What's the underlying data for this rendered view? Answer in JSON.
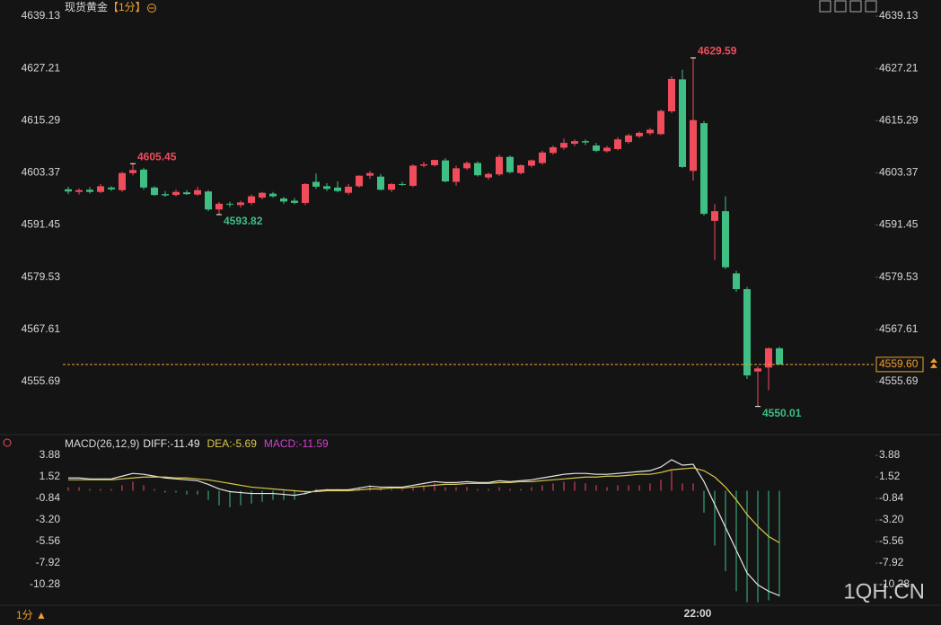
{
  "header": {
    "instrument": "现货黄金",
    "period": "【1分】"
  },
  "footer": {
    "period": "1分",
    "watermark": "1QH.CN"
  },
  "chart_data": [
    {
      "type": "candlestick",
      "categories": [
        null,
        null,
        null,
        null,
        null,
        null,
        null,
        null,
        null,
        null,
        null,
        null,
        null,
        null,
        null,
        null,
        null,
        null,
        null,
        null,
        null,
        null,
        null,
        null,
        null,
        null,
        null,
        null,
        null,
        null,
        null,
        null,
        null,
        null,
        null,
        null,
        null,
        null,
        null,
        null,
        null,
        null,
        null,
        null,
        null,
        null,
        null,
        null,
        null,
        null,
        null,
        null,
        null,
        null,
        null,
        null,
        null,
        null,
        "22:00",
        null,
        null,
        null,
        null,
        null,
        null,
        null,
        null
      ],
      "open": [
        4599.6,
        4599.0,
        4599.5,
        4599.0,
        4600.0,
        4599.4,
        4603.3,
        4604.1,
        4600.0,
        4598.5,
        4598.3,
        4598.9,
        4598.4,
        4599.1,
        4595.0,
        4596.3,
        4596.0,
        4596.5,
        4597.7,
        4598.6,
        4597.5,
        4597.0,
        4596.5,
        4601.3,
        4600.3,
        4600.0,
        4598.8,
        4600.3,
        4602.7,
        4602.5,
        4599.5,
        4600.8,
        4600.4,
        4605.0,
        4605.1,
        4606.2,
        4601.3,
        4604.4,
        4605.6,
        4602.3,
        4603.0,
        4607.0,
        4603.3,
        4605.0,
        4605.6,
        4607.9,
        4609.1,
        4610.0,
        4610.6,
        4609.6,
        4608.3,
        4608.8,
        4610.4,
        4611.7,
        4612.4,
        4612.2,
        4617.4,
        4624.7,
        4603.8,
        4614.7,
        4592.4,
        4594.6,
        4580.4,
        4576.8,
        4558.0,
        4558.9,
        4563.3
      ],
      "high": [
        4600.2,
        4599.8,
        4600.1,
        4600.8,
        4600.3,
        4603.6,
        4605.45,
        4604.5,
        4600.3,
        4599.2,
        4599.5,
        4599.4,
        4600.2,
        4599.4,
        4596.7,
        4596.8,
        4597.0,
        4598.4,
        4599.0,
        4599.0,
        4597.9,
        4597.6,
        4601.0,
        4603.2,
        4601.0,
        4601.4,
        4600.8,
        4602.8,
        4603.8,
        4603.1,
        4601.0,
        4601.3,
        4605.3,
        4605.9,
        4606.3,
        4606.7,
        4605.0,
        4606.0,
        4606.0,
        4603.4,
        4607.5,
        4607.3,
        4605.3,
        4606.4,
        4608.4,
        4609.6,
        4611.2,
        4611.0,
        4611.0,
        4610.2,
        4609.5,
        4611.5,
        4612.3,
        4612.8,
        4613.6,
        4617.8,
        4625.4,
        4626.9,
        4629.59,
        4615.2,
        4596.2,
        4598.0,
        4581.0,
        4577.3,
        4559.2,
        4563.5,
        4563.6
      ],
      "low": [
        4598.5,
        4598.4,
        4598.6,
        4598.7,
        4599.2,
        4599.0,
        4602.8,
        4599.5,
        4598.1,
        4597.9,
        4598.0,
        4598.3,
        4598.1,
        4594.6,
        4593.82,
        4595.5,
        4595.4,
        4596.0,
        4597.3,
        4597.7,
        4596.3,
        4596.2,
        4596.0,
        4599.7,
        4599.2,
        4598.9,
        4598.4,
        4600.0,
        4602.0,
        4599.3,
        4599.0,
        4600.4,
        4600.1,
        4604.6,
        4604.8,
        4601.2,
        4600.4,
        4604.0,
        4602.5,
        4601.8,
        4602.6,
        4603.2,
        4603.0,
        4604.6,
        4605.2,
        4607.5,
        4608.6,
        4609.5,
        4609.7,
        4608.1,
        4608.0,
        4608.5,
        4610.0,
        4611.3,
        4612.0,
        4612.0,
        4617.0,
        4604.5,
        4601.6,
        4593.6,
        4583.4,
        4581.4,
        4576.2,
        4556.3,
        4550.01,
        4553.7,
        4559.6
      ],
      "close": [
        4599.1,
        4599.4,
        4599.0,
        4600.3,
        4599.6,
        4603.3,
        4604.0,
        4600.0,
        4598.3,
        4598.2,
        4599.0,
        4598.5,
        4599.4,
        4595.0,
        4596.3,
        4596.1,
        4596.6,
        4598.0,
        4598.8,
        4598.0,
        4596.8,
        4596.5,
        4600.8,
        4600.2,
        4599.7,
        4599.2,
        4600.2,
        4602.7,
        4603.3,
        4599.5,
        4600.8,
        4600.6,
        4605.0,
        4605.3,
        4606.3,
        4601.4,
        4604.4,
        4605.6,
        4602.8,
        4603.1,
        4607.0,
        4603.5,
        4605.1,
        4606.2,
        4608.0,
        4609.2,
        4610.2,
        4610.6,
        4610.3,
        4608.4,
        4609.1,
        4611.0,
        4611.9,
        4612.5,
        4613.2,
        4617.5,
        4624.8,
        4604.7,
        4615.4,
        4594.0,
        4594.6,
        4581.8,
        4576.8,
        4557.1,
        4558.7,
        4563.3,
        4559.6
      ],
      "up_color": "#f04c5c",
      "down_color": "#3fbf84",
      "annotations": [
        4605.45,
        4593.82,
        4629.59,
        4550.01
      ],
      "last_price": {
        "value": 4559.6,
        "label": "4559.60"
      },
      "last_price_color": "#f0a030",
      "ylim": [
        4544.4,
        4641.8
      ],
      "yticks": [
        4555.69,
        4567.61,
        4579.53,
        4591.45,
        4603.37,
        4615.29,
        4627.21,
        4639.13
      ]
    },
    {
      "type": "macd",
      "title": "MACD(26,12,9)",
      "series": [
        {
          "name": "DIFF:-11.49",
          "color": "#e6e6e6",
          "kind": "line",
          "values": [
            1.4,
            1.4,
            1.3,
            1.3,
            1.3,
            1.6,
            1.9,
            1.8,
            1.6,
            1.4,
            1.3,
            1.2,
            1.1,
            0.7,
            0.2,
            -0.1,
            -0.2,
            -0.3,
            -0.3,
            -0.3,
            -0.4,
            -0.5,
            -0.3,
            0.0,
            0.1,
            0.1,
            0.1,
            0.3,
            0.5,
            0.4,
            0.4,
            0.4,
            0.6,
            0.8,
            1.0,
            0.9,
            0.9,
            1.0,
            0.9,
            0.9,
            1.1,
            1.0,
            1.1,
            1.2,
            1.4,
            1.6,
            1.8,
            1.9,
            1.9,
            1.8,
            1.8,
            1.9,
            2.0,
            2.1,
            2.2,
            2.6,
            3.4,
            2.8,
            2.9,
            1.0,
            -1.5,
            -4.0,
            -6.5,
            -9.0,
            -10.3,
            -11.0,
            -11.49
          ]
        },
        {
          "name": "DEA:-5.69",
          "color": "#d8c84a",
          "kind": "line",
          "values": [
            1.2,
            1.2,
            1.2,
            1.2,
            1.2,
            1.3,
            1.4,
            1.5,
            1.5,
            1.5,
            1.4,
            1.4,
            1.3,
            1.2,
            1.0,
            0.8,
            0.6,
            0.4,
            0.3,
            0.2,
            0.1,
            0.0,
            -0.1,
            -0.1,
            0.0,
            0.0,
            0.0,
            0.1,
            0.2,
            0.2,
            0.3,
            0.3,
            0.4,
            0.5,
            0.6,
            0.7,
            0.7,
            0.8,
            0.8,
            0.8,
            0.9,
            0.9,
            1.0,
            1.0,
            1.1,
            1.2,
            1.3,
            1.4,
            1.5,
            1.5,
            1.6,
            1.6,
            1.7,
            1.8,
            1.8,
            2.0,
            2.3,
            2.4,
            2.5,
            2.2,
            1.5,
            0.4,
            -1.0,
            -2.6,
            -3.9,
            -5.0,
            -5.69
          ]
        },
        {
          "name": "MACD:-11.59",
          "color": "#d040d0",
          "kind": "histogram",
          "values": [
            0.4,
            0.4,
            0.2,
            0.2,
            0.2,
            0.6,
            1.0,
            0.6,
            0.2,
            -0.2,
            -0.2,
            -0.4,
            -0.4,
            -1.0,
            -1.6,
            -1.8,
            -1.6,
            -1.4,
            -1.2,
            -1.0,
            -1.0,
            -1.0,
            -0.4,
            0.2,
            0.2,
            0.2,
            0.2,
            0.4,
            0.6,
            0.4,
            0.2,
            0.2,
            0.4,
            0.6,
            0.8,
            0.4,
            0.4,
            0.4,
            0.2,
            0.2,
            0.4,
            0.2,
            0.2,
            0.4,
            0.6,
            0.8,
            1.0,
            1.0,
            0.8,
            0.6,
            0.4,
            0.6,
            0.6,
            0.6,
            0.8,
            1.2,
            2.2,
            0.8,
            0.8,
            -2.4,
            -6.0,
            -8.8,
            -11.0,
            -12.2,
            -12.2,
            -12.0,
            -11.59
          ]
        }
      ],
      "up_color": "#f04c5c",
      "down_color": "#3fbf84",
      "ylim": [
        -12.34,
        4.77
      ],
      "yticks": [
        {
          "value": -10.28,
          "label": "-10.28"
        },
        -7.92,
        -5.56,
        {
          "value": -3.2,
          "label": "-3.20"
        },
        -0.84,
        1.52,
        3.88
      ]
    }
  ]
}
